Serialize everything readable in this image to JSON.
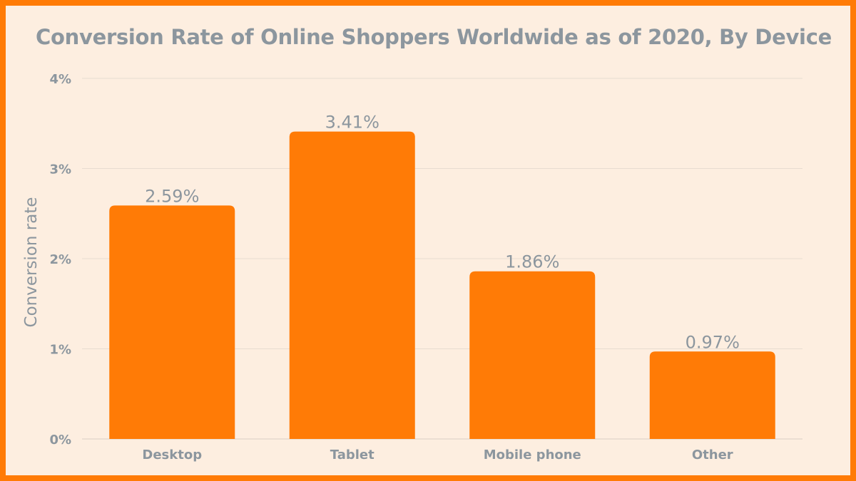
{
  "colors": {
    "bar": "#FF7B06",
    "background": "#FDEEE0",
    "border": "#FF7B06",
    "text": "#8C969E",
    "grid": "#E8DCD0"
  },
  "chart_data": {
    "type": "bar",
    "title": "Conversion Rate of Online Shoppers Worldwide as of 2020, By Device",
    "xlabel": "",
    "ylabel": "Conversion rate",
    "categories": [
      "Desktop",
      "Tablet",
      "Mobile phone",
      "Other"
    ],
    "values": [
      2.59,
      3.41,
      1.86,
      0.97
    ],
    "value_labels": [
      "2.59%",
      "3.41%",
      "1.86%",
      "0.97%"
    ],
    "ylim": [
      0,
      4
    ],
    "yticks": [
      0,
      1,
      2,
      3,
      4
    ],
    "ytick_labels": [
      "0%",
      "1%",
      "2%",
      "3%",
      "4%"
    ],
    "grid": true,
    "legend": "none"
  }
}
